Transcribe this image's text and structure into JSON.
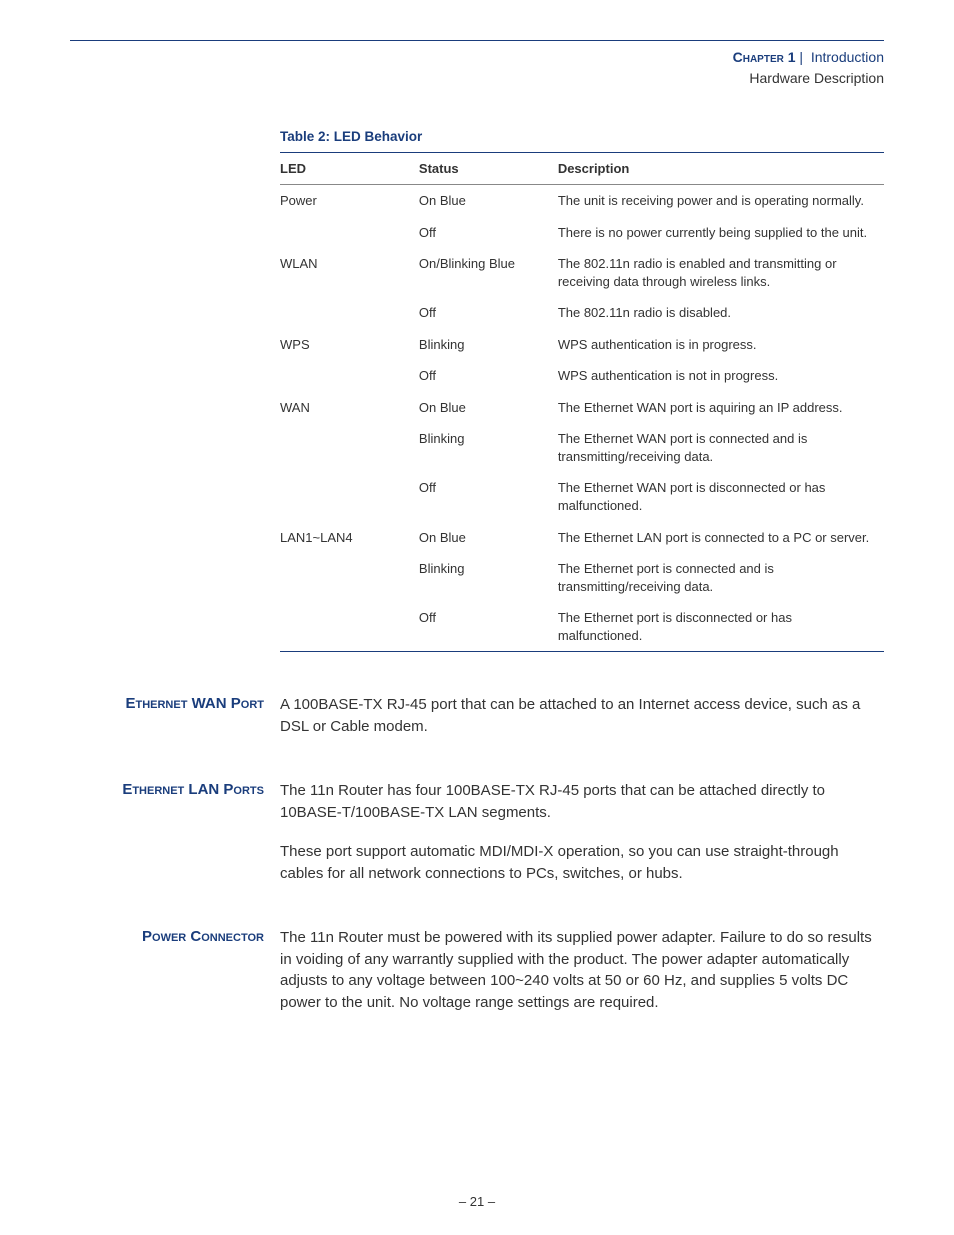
{
  "colors": {
    "accent": "#1a3d7c",
    "text": "#333333",
    "rule_light": "#888888",
    "background": "#ffffff"
  },
  "header": {
    "chapter_label": "Chapter 1",
    "separator": "|",
    "chapter_title": "Introduction",
    "subheading": "Hardware Description"
  },
  "table": {
    "caption": "Table 2: LED Behavior",
    "columns": [
      "LED",
      "Status",
      "Description"
    ],
    "col_widths_pct": [
      23,
      23,
      54
    ],
    "header_fontsize": 13,
    "body_fontsize": 13,
    "rows": [
      {
        "led": "Power",
        "status": "On Blue",
        "description": "The unit is receiving power and is operating normally."
      },
      {
        "led": "",
        "status": "Off",
        "description": "There is no power currently being supplied to the unit."
      },
      {
        "led": "WLAN",
        "status": "On/Blinking Blue",
        "description": "The 802.11n radio is enabled and transmitting or receiving data through wireless links."
      },
      {
        "led": "",
        "status": "Off",
        "description": "The 802.11n radio is disabled."
      },
      {
        "led": "WPS",
        "status": "Blinking",
        "description": "WPS authentication is in progress."
      },
      {
        "led": "",
        "status": "Off",
        "description": "WPS authentication is not in progress."
      },
      {
        "led": "WAN",
        "status": "On Blue",
        "description": "The Ethernet WAN port is aquiring an IP address."
      },
      {
        "led": "",
        "status": "Blinking",
        "description": "The Ethernet WAN port is connected and is transmitting/receiving data."
      },
      {
        "led": "",
        "status": "Off",
        "description": "The Ethernet WAN port is disconnected or has malfunctioned."
      },
      {
        "led": "LAN1~LAN4",
        "status": "On Blue",
        "description": "The Ethernet LAN port is connected to a PC or server."
      },
      {
        "led": "",
        "status": "Blinking",
        "description": "The Ethernet port is connected and is transmitting/receiving data."
      },
      {
        "led": "",
        "status": "Off",
        "description": "The Ethernet port is disconnected or has malfunctioned."
      }
    ]
  },
  "sections": [
    {
      "heading": "Ethernet WAN Port",
      "paragraphs": [
        "A 100BASE-TX RJ-45 port that can be attached to an Internet access device, such as a DSL or Cable modem."
      ]
    },
    {
      "heading": "Ethernet LAN Ports",
      "paragraphs": [
        "The 11n Router has four 100BASE-TX RJ-45 ports that can be attached directly to 10BASE-T/100BASE-TX LAN segments.",
        "These port support automatic MDI/MDI-X operation, so you can use straight-through cables for all network connections to PCs, switches, or hubs."
      ]
    },
    {
      "heading": "Power Connector",
      "paragraphs": [
        "The 11n Router must be powered with its supplied power adapter. Failure to do so results in voiding of any warrantly supplied with the product. The power adapter automatically adjusts to any voltage between 100~240 volts at 50 or 60 Hz, and supplies 5 volts DC power to the unit. No voltage range settings are required."
      ]
    }
  ],
  "page_number": "– 21 –"
}
